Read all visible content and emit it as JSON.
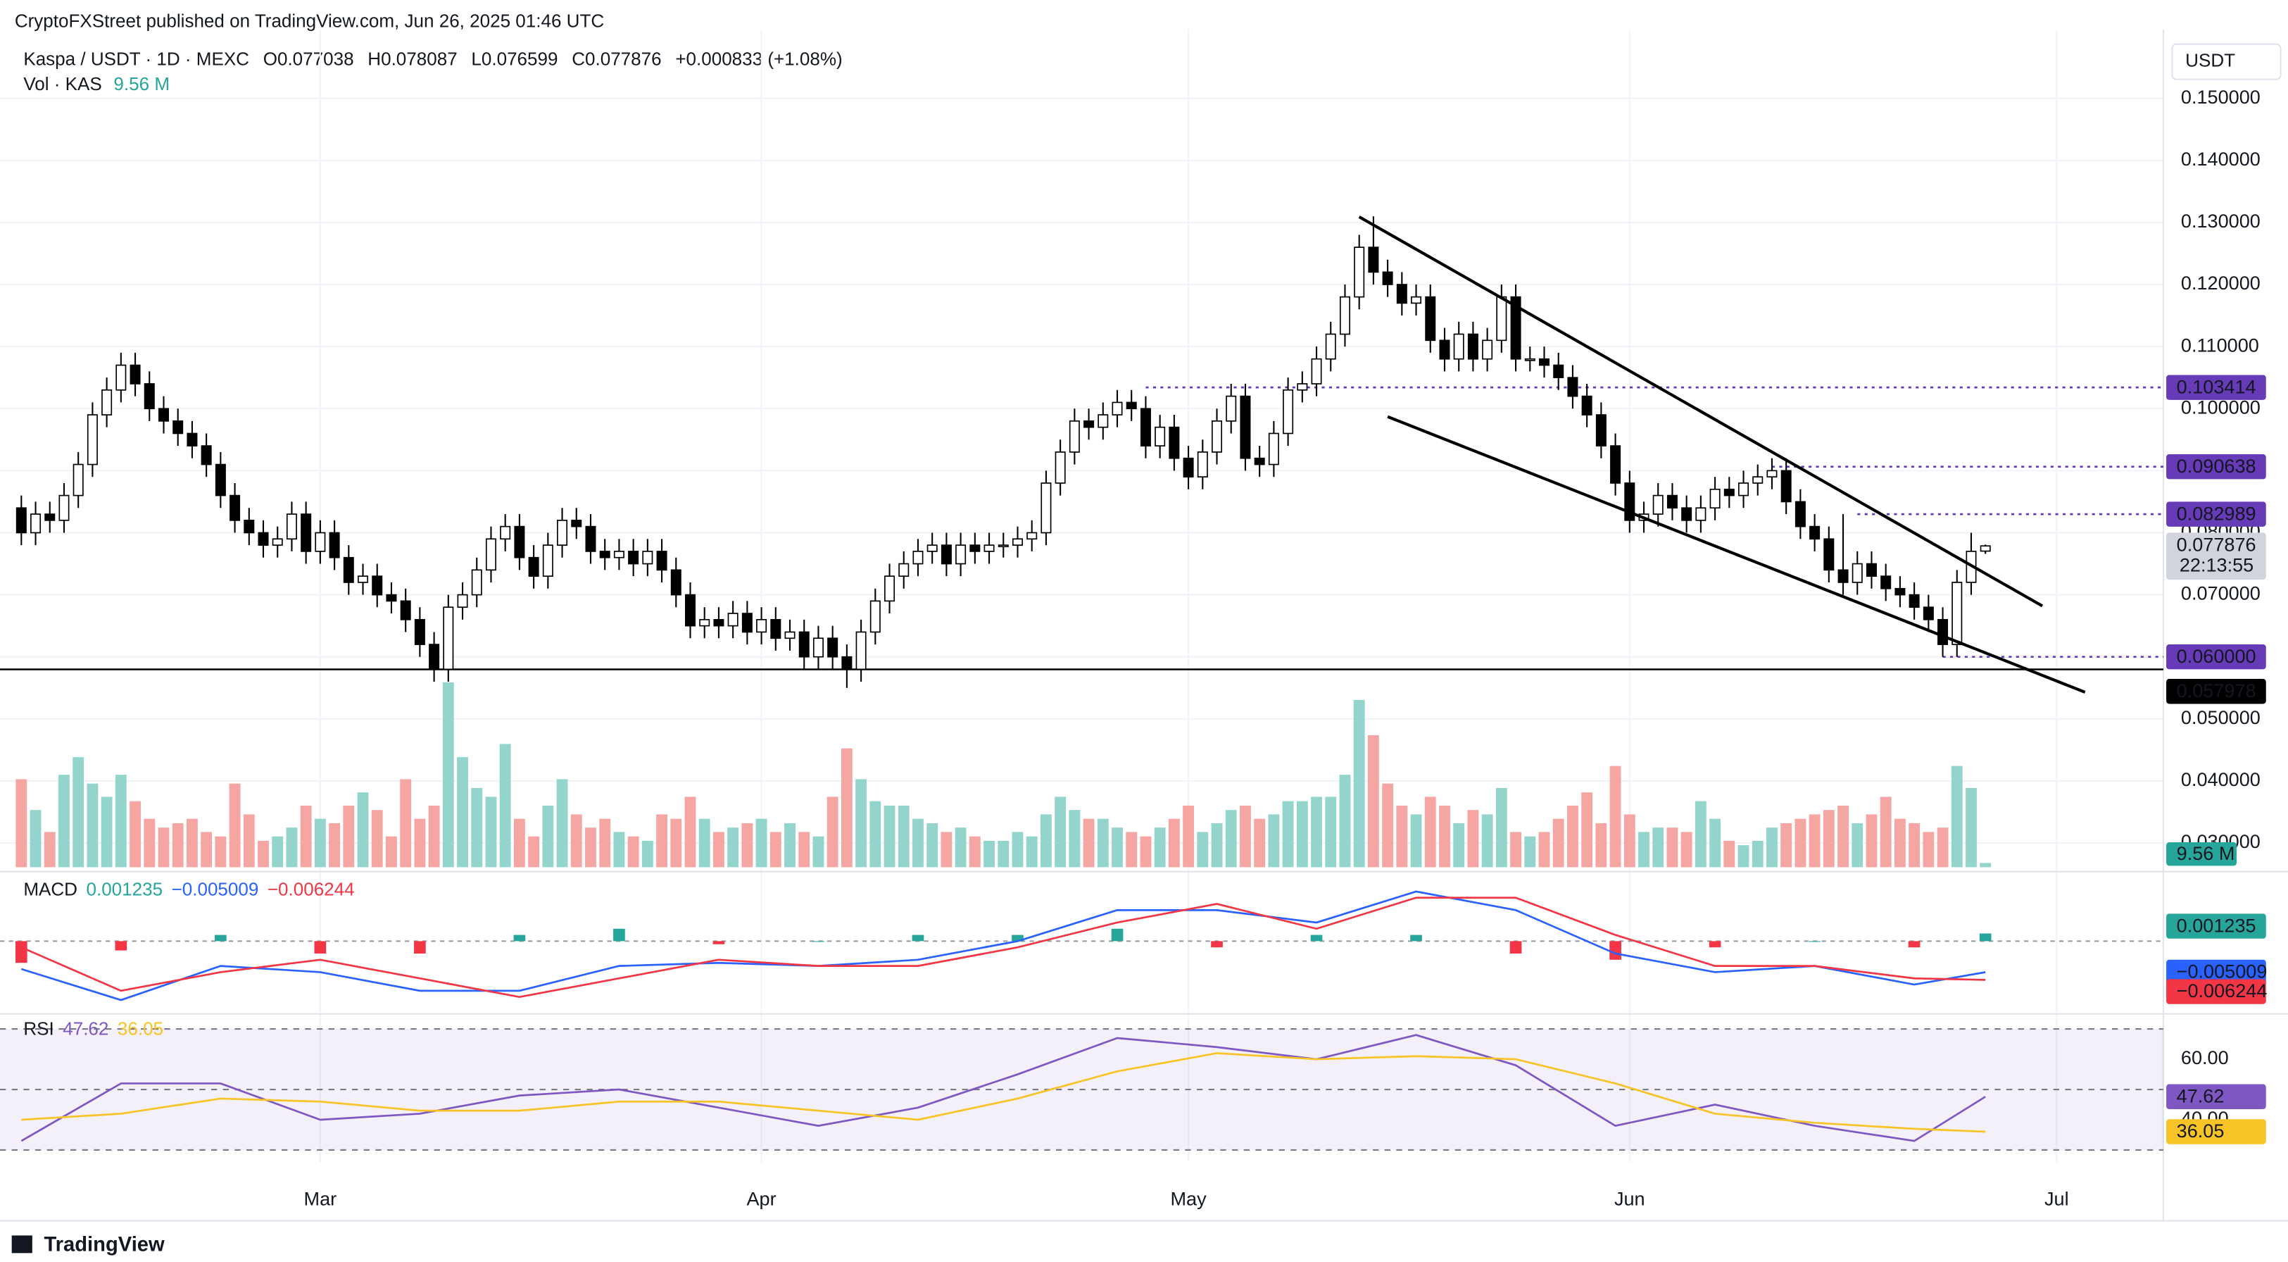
{
  "chart_data": {
    "type": "candlestick",
    "publisher": "CryptoFXStreet published on TradingView.com, Jun 26, 2025 01:46 UTC",
    "symbol": "Kaspa / USDT · 1D · MEXC",
    "currency": "USDT",
    "ohlc_prefixes": [
      "O",
      "H",
      "L",
      "C"
    ],
    "change": "+0.000833 (+1.08%)",
    "countdown": "22:13:55",
    "brand": "TradingView",
    "xlim": [
      -1.5,
      150.5
    ],
    "xticks": [
      {
        "value": 21,
        "label": "Mar"
      },
      {
        "value": 52,
        "label": "Apr"
      },
      {
        "value": 82,
        "label": "May"
      },
      {
        "value": 113,
        "label": "Jun"
      },
      {
        "value": 143,
        "label": "Jul"
      }
    ],
    "ylim": [
      0.0261,
      0.1611
    ],
    "yticks": [
      {
        "value": 0.15,
        "label": "0.150000"
      },
      {
        "value": 0.14,
        "label": "0.140000"
      },
      {
        "value": 0.13,
        "label": "0.130000"
      },
      {
        "value": 0.12,
        "label": "0.120000"
      },
      {
        "value": 0.11,
        "label": "0.110000"
      },
      {
        "value": 0.1,
        "label": "0.100000"
      },
      {
        "value": 0.09,
        "label": "0.090000"
      },
      {
        "value": 0.08,
        "label": "0.080000"
      },
      {
        "value": 0.07,
        "label": "0.070000"
      },
      {
        "value": 0.06,
        "label": "0.060000"
      },
      {
        "value": 0.05,
        "label": "0.050000"
      },
      {
        "value": 0.04,
        "label": "0.040000"
      },
      {
        "value": 0.03,
        "label": "0.030000"
      }
    ],
    "grid": true,
    "up_color": "#ffffff",
    "down_color": "#000000",
    "open": [
      0.084,
      0.08,
      0.083,
      0.082,
      0.086,
      0.091,
      0.099,
      0.103,
      0.107,
      0.104,
      0.1,
      0.098,
      0.096,
      0.094,
      0.091,
      0.086,
      0.082,
      0.08,
      0.078,
      0.079,
      0.083,
      0.077,
      0.08,
      0.076,
      0.072,
      0.073,
      0.07,
      0.069,
      0.066,
      0.062,
      0.058,
      0.068,
      0.07,
      0.074,
      0.079,
      0.081,
      0.076,
      0.073,
      0.078,
      0.082,
      0.081,
      0.077,
      0.076,
      0.077,
      0.075,
      0.077,
      0.074,
      0.07,
      0.065,
      0.066,
      0.065,
      0.067,
      0.064,
      0.066,
      0.063,
      0.064,
      0.06,
      0.063,
      0.06,
      0.058,
      0.064,
      0.069,
      0.073,
      0.075,
      0.077,
      0.078,
      0.075,
      0.078,
      0.077,
      0.078,
      0.078,
      0.079,
      0.08,
      0.088,
      0.093,
      0.098,
      0.097,
      0.099,
      0.101,
      0.1,
      0.094,
      0.097,
      0.092,
      0.089,
      0.093,
      0.098,
      0.102,
      0.092,
      0.091,
      0.096,
      0.103,
      0.104,
      0.108,
      0.112,
      0.118,
      0.126,
      0.122,
      0.12,
      0.117,
      0.118,
      0.111,
      0.108,
      0.112,
      0.108,
      0.111,
      0.118,
      0.108,
      0.108,
      0.107,
      0.105,
      0.102,
      0.099,
      0.094,
      0.088,
      0.082,
      0.083,
      0.086,
      0.084,
      0.082,
      0.084,
      0.087,
      0.086,
      0.088,
      0.089,
      0.09,
      0.085,
      0.081,
      0.079,
      0.074,
      0.072,
      0.075,
      0.073,
      0.071,
      0.07,
      0.068,
      0.066,
      0.062,
      0.072,
      0.077038
    ],
    "high": [
      0.086,
      0.085,
      0.085,
      0.088,
      0.093,
      0.101,
      0.105,
      0.109,
      0.109,
      0.106,
      0.102,
      0.1,
      0.098,
      0.096,
      0.093,
      0.088,
      0.084,
      0.082,
      0.081,
      0.085,
      0.085,
      0.082,
      0.082,
      0.078,
      0.075,
      0.075,
      0.072,
      0.071,
      0.068,
      0.064,
      0.07,
      0.072,
      0.076,
      0.081,
      0.083,
      0.083,
      0.078,
      0.08,
      0.084,
      0.084,
      0.083,
      0.079,
      0.079,
      0.079,
      0.079,
      0.079,
      0.076,
      0.072,
      0.068,
      0.068,
      0.069,
      0.069,
      0.068,
      0.068,
      0.066,
      0.066,
      0.065,
      0.065,
      0.062,
      0.066,
      0.071,
      0.075,
      0.077,
      0.079,
      0.08,
      0.08,
      0.08,
      0.08,
      0.08,
      0.08,
      0.081,
      0.082,
      0.09,
      0.095,
      0.1,
      0.1,
      0.101,
      0.103,
      0.103,
      0.102,
      0.099,
      0.099,
      0.094,
      0.095,
      0.1,
      0.104,
      0.104,
      0.094,
      0.098,
      0.105,
      0.106,
      0.11,
      0.114,
      0.12,
      0.128,
      0.131,
      0.124,
      0.122,
      0.12,
      0.12,
      0.113,
      0.114,
      0.114,
      0.113,
      0.12,
      0.12,
      0.11,
      0.11,
      0.109,
      0.107,
      0.104,
      0.101,
      0.096,
      0.09,
      0.085,
      0.088,
      0.088,
      0.086,
      0.086,
      0.089,
      0.089,
      0.09,
      0.091,
      0.092,
      0.092,
      0.087,
      0.083,
      0.081,
      0.083,
      0.077,
      0.077,
      0.075,
      0.073,
      0.072,
      0.07,
      0.068,
      0.074,
      0.08,
      0.078087
    ],
    "low": [
      0.078,
      0.078,
      0.08,
      0.08,
      0.084,
      0.089,
      0.097,
      0.101,
      0.102,
      0.098,
      0.096,
      0.094,
      0.092,
      0.089,
      0.084,
      0.08,
      0.078,
      0.076,
      0.076,
      0.077,
      0.075,
      0.075,
      0.074,
      0.07,
      0.07,
      0.068,
      0.067,
      0.064,
      0.06,
      0.056,
      0.056,
      0.066,
      0.068,
      0.072,
      0.077,
      0.074,
      0.071,
      0.071,
      0.076,
      0.079,
      0.075,
      0.074,
      0.074,
      0.073,
      0.073,
      0.072,
      0.068,
      0.063,
      0.063,
      0.063,
      0.063,
      0.062,
      0.062,
      0.061,
      0.061,
      0.058,
      0.058,
      0.058,
      0.055,
      0.056,
      0.062,
      0.067,
      0.071,
      0.073,
      0.075,
      0.073,
      0.073,
      0.075,
      0.075,
      0.076,
      0.076,
      0.077,
      0.078,
      0.086,
      0.091,
      0.095,
      0.095,
      0.097,
      0.098,
      0.092,
      0.092,
      0.09,
      0.087,
      0.087,
      0.091,
      0.096,
      0.09,
      0.089,
      0.089,
      0.094,
      0.101,
      0.102,
      0.106,
      0.11,
      0.116,
      0.12,
      0.118,
      0.115,
      0.115,
      0.109,
      0.106,
      0.106,
      0.106,
      0.106,
      0.109,
      0.106,
      0.106,
      0.105,
      0.103,
      0.1,
      0.097,
      0.092,
      0.086,
      0.08,
      0.08,
      0.081,
      0.082,
      0.08,
      0.08,
      0.082,
      0.084,
      0.084,
      0.086,
      0.087,
      0.083,
      0.079,
      0.077,
      0.072,
      0.07,
      0.07,
      0.071,
      0.069,
      0.068,
      0.066,
      0.064,
      0.06,
      0.06,
      0.07,
      0.076599
    ],
    "close": [
      0.08,
      0.083,
      0.082,
      0.086,
      0.091,
      0.099,
      0.103,
      0.107,
      0.104,
      0.1,
      0.098,
      0.096,
      0.094,
      0.091,
      0.086,
      0.082,
      0.08,
      0.078,
      0.079,
      0.083,
      0.077,
      0.08,
      0.076,
      0.072,
      0.073,
      0.07,
      0.069,
      0.066,
      0.062,
      0.058,
      0.068,
      0.07,
      0.074,
      0.079,
      0.081,
      0.076,
      0.073,
      0.078,
      0.082,
      0.081,
      0.077,
      0.076,
      0.077,
      0.075,
      0.077,
      0.074,
      0.07,
      0.065,
      0.066,
      0.065,
      0.067,
      0.064,
      0.066,
      0.063,
      0.064,
      0.06,
      0.063,
      0.06,
      0.058,
      0.064,
      0.069,
      0.073,
      0.075,
      0.077,
      0.078,
      0.075,
      0.078,
      0.077,
      0.078,
      0.078,
      0.079,
      0.08,
      0.088,
      0.093,
      0.098,
      0.097,
      0.099,
      0.101,
      0.1,
      0.094,
      0.097,
      0.092,
      0.089,
      0.093,
      0.098,
      0.102,
      0.092,
      0.091,
      0.096,
      0.103,
      0.104,
      0.108,
      0.112,
      0.118,
      0.126,
      0.122,
      0.12,
      0.117,
      0.118,
      0.111,
      0.108,
      0.112,
      0.108,
      0.111,
      0.118,
      0.108,
      0.108,
      0.107,
      0.105,
      0.102,
      0.099,
      0.094,
      0.088,
      0.082,
      0.083,
      0.086,
      0.084,
      0.082,
      0.084,
      0.087,
      0.086,
      0.088,
      0.089,
      0.09,
      0.085,
      0.081,
      0.079,
      0.074,
      0.072,
      0.075,
      0.073,
      0.071,
      0.07,
      0.068,
      0.066,
      0.062,
      0.072,
      0.077,
      0.077876
    ],
    "volume": {
      "name": "Vol · KAS",
      "up_color": "#93d4cd",
      "down_color": "#f5a6a3",
      "value_labels": {
        "138": "9.56 M"
      },
      "values": [
        200,
        130,
        80,
        210,
        250,
        190,
        160,
        210,
        150,
        110,
        90,
        100,
        110,
        80,
        70,
        190,
        120,
        60,
        70,
        90,
        140,
        110,
        100,
        140,
        170,
        130,
        70,
        200,
        110,
        140,
        420,
        250,
        180,
        160,
        280,
        110,
        70,
        140,
        200,
        120,
        90,
        110,
        80,
        70,
        60,
        120,
        110,
        160,
        110,
        80,
        90,
        100,
        110,
        80,
        100,
        80,
        70,
        160,
        270,
        200,
        150,
        140,
        140,
        110,
        100,
        80,
        90,
        70,
        60,
        60,
        80,
        70,
        120,
        160,
        130,
        110,
        110,
        90,
        80,
        70,
        90,
        110,
        140,
        80,
        100,
        130,
        140,
        110,
        120,
        150,
        150,
        160,
        160,
        210,
        380,
        300,
        190,
        140,
        120,
        160,
        140,
        100,
        130,
        120,
        180,
        80,
        70,
        80,
        110,
        140,
        170,
        100,
        230,
        120,
        80,
        90,
        90,
        80,
        150,
        110,
        60,
        50,
        60,
        90,
        100,
        110,
        120,
        130,
        140,
        100,
        120,
        160,
        110,
        100,
        80,
        90,
        230,
        180,
        9.56
      ]
    },
    "levels": [
      {
        "value": 0.103414,
        "start": 79
      },
      {
        "value": 0.090638,
        "start": 123
      },
      {
        "value": 0.082989,
        "start": 129
      },
      {
        "value": 0.06,
        "label": "0.060000",
        "start": 135
      }
    ],
    "level_color": "#673ab7",
    "support": {
      "value": 0.057978,
      "color": "#000000"
    },
    "trendlines": [
      {
        "x": [
          94,
          142
        ],
        "y": [
          0.1309,
          0.0682
        ]
      },
      {
        "x": [
          96,
          145
        ],
        "y": [
          0.0987,
          0.0543
        ]
      }
    ],
    "macd": {
      "name": "MACD",
      "ylim": [
        -0.0115,
        0.0105
      ],
      "x": [
        0,
        7,
        14,
        21,
        28,
        35,
        42,
        49,
        56,
        63,
        70,
        77,
        84,
        91,
        98,
        105,
        112,
        119,
        126,
        133,
        138
      ],
      "histogram": {
        "color_up": "#26a69a",
        "color_down": "#f23645",
        "values": [
          -0.0035,
          -0.0015,
          0.001,
          -0.002,
          -0.002,
          0.001,
          0.002,
          -0.0005,
          0,
          0.001,
          0.001,
          0.002,
          -0.001,
          0.001,
          0.001,
          -0.002,
          -0.003,
          -0.001,
          0,
          -0.001,
          0.001235
        ]
      },
      "series": [
        {
          "color": "#2962ff",
          "values": [
            -0.0045,
            -0.0095,
            -0.004,
            -0.005,
            -0.008,
            -0.008,
            -0.004,
            -0.0035,
            -0.004,
            -0.003,
            0,
            0.005,
            0.005,
            0.003,
            0.008,
            0.005,
            -0.002,
            -0.005,
            -0.004,
            -0.007,
            -0.005009
          ],
          "value_labels": {
            "20": "−0.005009"
          }
        },
        {
          "color": "#f23645",
          "values": [
            -0.001,
            -0.008,
            -0.005,
            -0.003,
            -0.006,
            -0.009,
            -0.006,
            -0.003,
            -0.004,
            -0.004,
            -0.001,
            0.003,
            0.006,
            0.002,
            0.007,
            0.007,
            0.001,
            -0.004,
            -0.004,
            -0.006,
            -0.006244
          ],
          "value_labels": {
            "20": "−0.006244"
          }
        }
      ]
    },
    "rsi": {
      "name": "RSI",
      "ylim": [
        26,
        74
      ],
      "levels": [
        70,
        50,
        30
      ],
      "yticks": [
        {
          "value": 60,
          "label": "60.00"
        },
        {
          "value": 40,
          "label": "40.00"
        }
      ],
      "x": [
        0,
        7,
        14,
        21,
        28,
        35,
        42,
        49,
        56,
        63,
        70,
        77,
        84,
        91,
        98,
        105,
        112,
        119,
        126,
        133,
        138
      ],
      "series": [
        {
          "color": "#7e57c2",
          "values": [
            33,
            52,
            52,
            40,
            42,
            48,
            50,
            44,
            38,
            44,
            55,
            67,
            64,
            60,
            68,
            58,
            38,
            45,
            38,
            33,
            47.62
          ]
        },
        {
          "color": "#f7c325",
          "values": [
            40,
            42,
            47,
            46,
            43,
            43,
            46,
            46,
            43,
            40,
            47,
            56,
            62,
            60,
            61,
            60,
            52,
            42,
            39,
            37,
            36.05
          ]
        }
      ]
    }
  }
}
